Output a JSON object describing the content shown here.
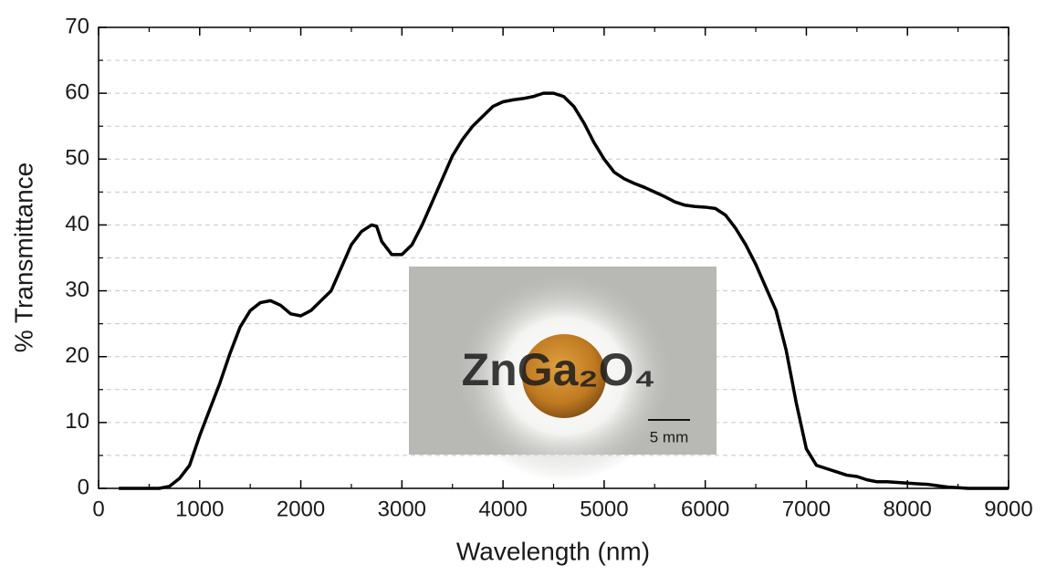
{
  "chart_data": {
    "type": "line",
    "x_label": "Wavelength (nm)",
    "y_label": "% Transmittance",
    "x": [
      200,
      600,
      700,
      800,
      900,
      1000,
      1100,
      1200,
      1300,
      1400,
      1500,
      1600,
      1700,
      1800,
      1900,
      2000,
      2100,
      2200,
      2300,
      2400,
      2500,
      2600,
      2700,
      2750,
      2800,
      2900,
      3000,
      3100,
      3200,
      3300,
      3400,
      3500,
      3600,
      3700,
      3800,
      3900,
      4000,
      4100,
      4200,
      4300,
      4400,
      4500,
      4600,
      4700,
      4800,
      4900,
      5000,
      5100,
      5200,
      5300,
      5400,
      5500,
      5600,
      5700,
      5800,
      5900,
      6000,
      6100,
      6200,
      6300,
      6400,
      6500,
      6600,
      6700,
      6800,
      6900,
      7000,
      7100,
      7200,
      7300,
      7400,
      7500,
      7600,
      7700,
      7800,
      7900,
      8000,
      8100,
      8200,
      8300,
      8400,
      8500,
      8600,
      9000
    ],
    "values": [
      0,
      0,
      0.3,
      1.5,
      3.5,
      8,
      12,
      16,
      20.5,
      24.5,
      27,
      28.2,
      28.5,
      27.8,
      26.5,
      26.2,
      27,
      28.5,
      30,
      33.5,
      37,
      39,
      40,
      39.8,
      37.5,
      35.5,
      35.5,
      37,
      40,
      43.5,
      47,
      50.5,
      53,
      55,
      56.5,
      58,
      58.7,
      59,
      59.2,
      59.5,
      60,
      60,
      59.5,
      58,
      55.5,
      52.5,
      50,
      48,
      47,
      46.3,
      45.7,
      45,
      44.3,
      43.5,
      43,
      42.8,
      42.7,
      42.5,
      41.5,
      39.5,
      37,
      34,
      30.5,
      27,
      21,
      13,
      6,
      3.5,
      3,
      2.5,
      2,
      1.8,
      1.3,
      1,
      1,
      0.9,
      0.8,
      0.7,
      0.6,
      0.4,
      0.2,
      0.1,
      0,
      0
    ],
    "color": "#000000",
    "xlim": [
      0,
      9000
    ],
    "ylim": [
      0,
      70
    ],
    "xticks": [
      0,
      1000,
      2000,
      3000,
      4000,
      5000,
      6000,
      7000,
      8000,
      9000
    ],
    "yticks": [
      0,
      10,
      20,
      30,
      40,
      50,
      60,
      70
    ],
    "xminorticks": [
      500,
      1500,
      2500,
      3500,
      4500,
      5500,
      6500,
      7500,
      8500
    ],
    "yminorticks": [
      5,
      15,
      25,
      35,
      45,
      55,
      65
    ],
    "grid": true,
    "inset_label": "ZnGa₂O₄",
    "scale_bar_label": "5 mm"
  }
}
